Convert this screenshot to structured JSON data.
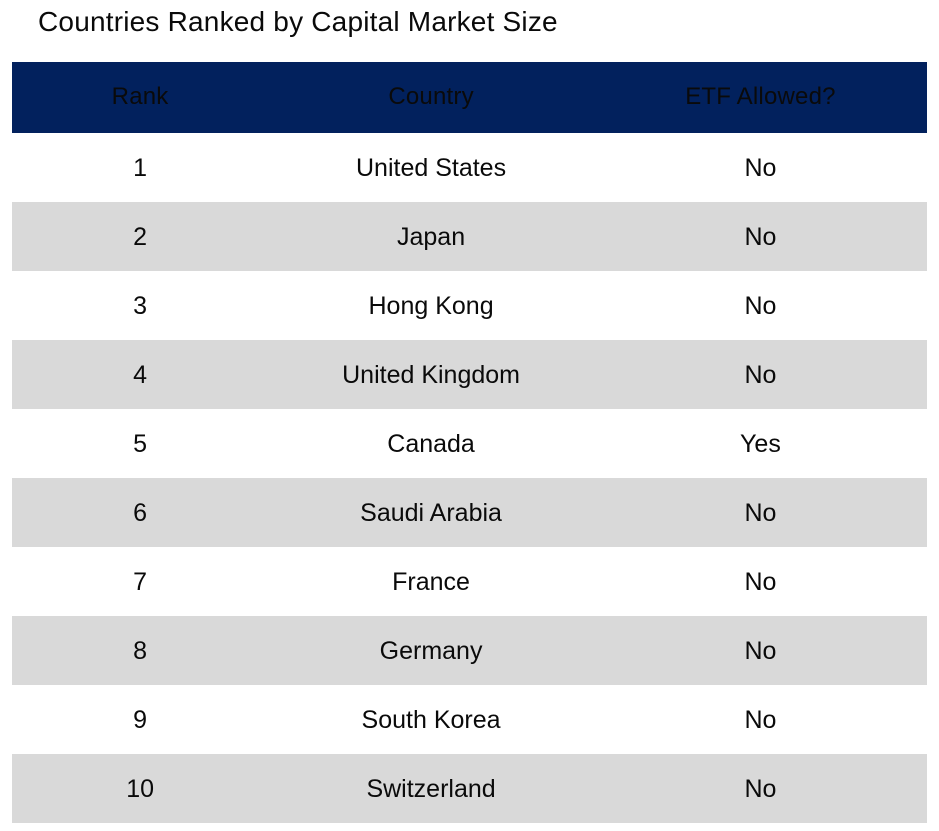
{
  "title": "Countries Ranked by Capital Market Size",
  "colors": {
    "header_bg": "#02215d",
    "header_text": "#ffffff",
    "row_bg": "#ffffff",
    "row_alt_bg": "#d9d9d9",
    "body_text": "#0a0a0a"
  },
  "table": {
    "headers": [
      "Rank",
      "Country",
      "ETF Allowed?"
    ],
    "rows": [
      {
        "rank": "1",
        "country": "United States",
        "etf": "No"
      },
      {
        "rank": "2",
        "country": "Japan",
        "etf": "No"
      },
      {
        "rank": "3",
        "country": "Hong Kong",
        "etf": "No"
      },
      {
        "rank": "4",
        "country": "United Kingdom",
        "etf": "No"
      },
      {
        "rank": "5",
        "country": "Canada",
        "etf": "Yes"
      },
      {
        "rank": "6",
        "country": "Saudi Arabia",
        "etf": "No"
      },
      {
        "rank": "7",
        "country": "France",
        "etf": "No"
      },
      {
        "rank": "8",
        "country": "Germany",
        "etf": "No"
      },
      {
        "rank": "9",
        "country": "South Korea",
        "etf": "No"
      },
      {
        "rank": "10",
        "country": "Switzerland",
        "etf": "No"
      }
    ]
  },
  "chart_data": {
    "type": "table",
    "title": "Countries Ranked by Capital Market Size",
    "columns": [
      "Rank",
      "Country",
      "ETF Allowed?"
    ],
    "rows": [
      [
        1,
        "United States",
        "No"
      ],
      [
        2,
        "Japan",
        "No"
      ],
      [
        3,
        "Hong Kong",
        "No"
      ],
      [
        4,
        "United Kingdom",
        "No"
      ],
      [
        5,
        "Canada",
        "Yes"
      ],
      [
        6,
        "Saudi Arabia",
        "No"
      ],
      [
        7,
        "France",
        "No"
      ],
      [
        8,
        "Germany",
        "No"
      ],
      [
        9,
        "South Korea",
        "No"
      ],
      [
        10,
        "Switzerland",
        "No"
      ]
    ],
    "layout_hints": {
      "zebra_striping": true,
      "header_background": "#02215d",
      "alt_row_background": "#d9d9d9",
      "cell_alignment": "center"
    }
  }
}
